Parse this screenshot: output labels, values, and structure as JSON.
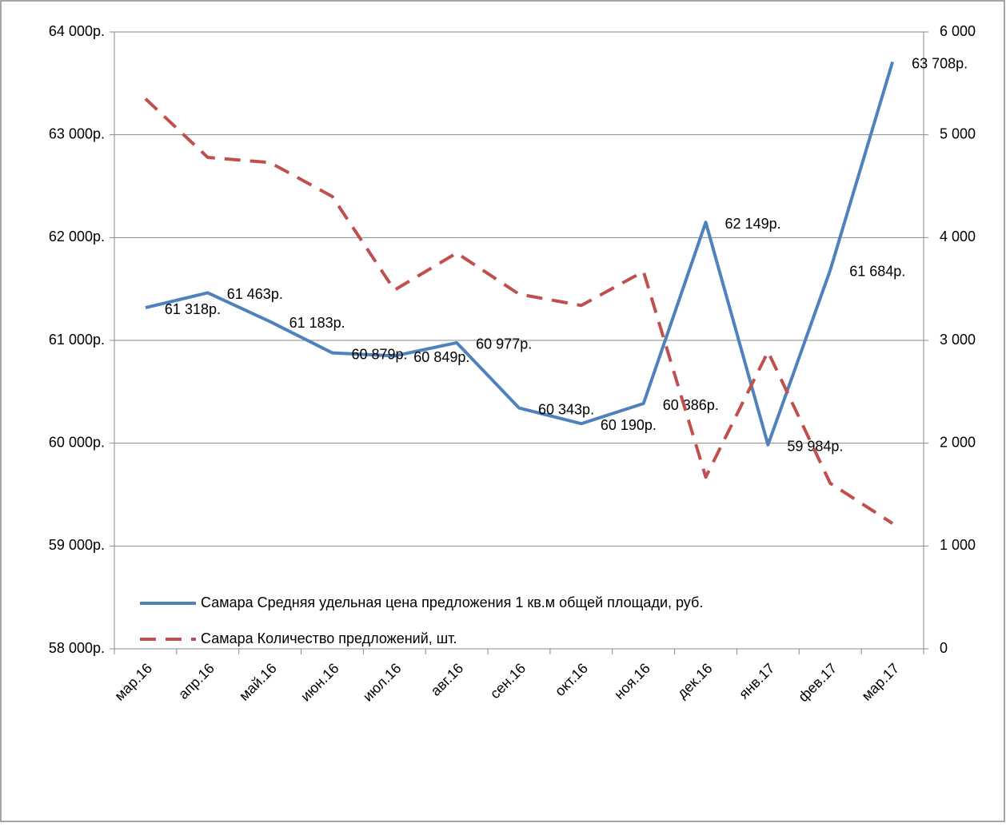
{
  "chart_data": {
    "type": "line",
    "categories": [
      "мар.16",
      "апр.16",
      "май.16",
      "июн.16",
      "июл.16",
      "авг.16",
      "сен.16",
      "окт.16",
      "ноя.16",
      "дек.16",
      "янв.17",
      "фев.17",
      "мар.17"
    ],
    "series": [
      {
        "name": "Самара Средняя удельная цена предложения 1 кв.м общей площади, руб.",
        "color": "#4f81bd",
        "style": "solid",
        "values": [
          61318,
          61463,
          61183,
          60879,
          60849,
          60977,
          60343,
          60190,
          60386,
          62149,
          59984,
          61684,
          63708
        ],
        "value_labels": [
          "61 318р.",
          "61 463р.",
          "61 183р.",
          "60 879р.",
          "60 849р.",
          "60 977р.",
          "60 343р.",
          "60 190р.",
          "60 386р.",
          "62 149р.",
          "59 984р.",
          "61 684р.",
          "63 708р."
        ]
      },
      {
        "name": "Самара Количество предложений, шт.",
        "color": "#c0504d",
        "style": "dashed",
        "axis": "y2",
        "values": [
          5350,
          4780,
          4730,
          4400,
          3490,
          3850,
          3450,
          3340,
          3670,
          1670,
          2890,
          1610,
          1220
        ]
      }
    ],
    "ylim": [
      58000,
      64000
    ],
    "yticks": [
      {
        "value": 58000,
        "label": "58 000р."
      },
      {
        "value": 59000,
        "label": "59 000р."
      },
      {
        "value": 60000,
        "label": "60 000р."
      },
      {
        "value": 61000,
        "label": "61 000р."
      },
      {
        "value": 62000,
        "label": "62 000р."
      },
      {
        "value": 63000,
        "label": "63 000р."
      },
      {
        "value": 64000,
        "label": "64 000р."
      }
    ],
    "y2lim": [
      0,
      6000
    ],
    "y2ticks": [
      0,
      {
        "value": 1000,
        "label": "1 000"
      },
      {
        "value": 2000,
        "label": "2 000"
      },
      {
        "value": 3000,
        "label": "3 000"
      },
      {
        "value": 4000,
        "label": "4 000"
      },
      {
        "value": 5000,
        "label": "5 000"
      },
      {
        "value": 6000,
        "label": "6 000"
      }
    ],
    "grid": true,
    "legend": "bottom"
  }
}
